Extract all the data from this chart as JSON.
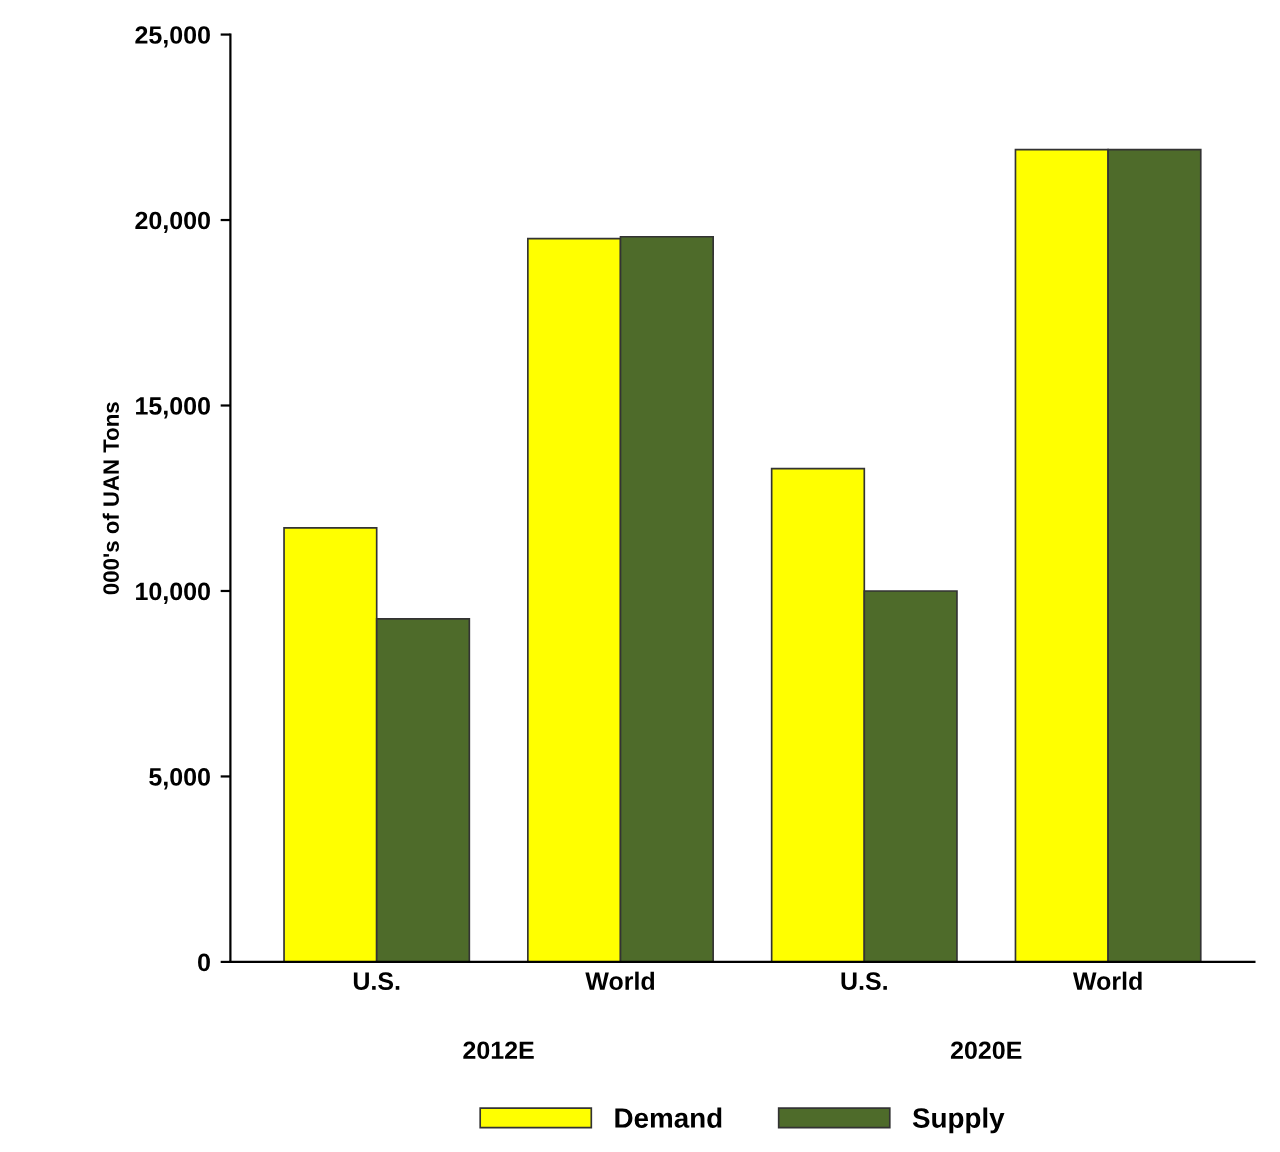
{
  "chart_data": {
    "type": "bar",
    "categories": [
      "U.S.",
      "World",
      "U.S.",
      "World"
    ],
    "series": [
      {
        "name": "Demand",
        "color": "#ffff00",
        "values": [
          11700,
          19500,
          13300,
          21900
        ]
      },
      {
        "name": "Supply",
        "color": "#4e6b2a",
        "values": [
          9250,
          19550,
          10000,
          21900
        ]
      }
    ],
    "ylabel": "000's of UAN Tons",
    "ylim": [
      0,
      25000
    ],
    "yticks": [
      {
        "value": 0,
        "label": "0"
      },
      {
        "value": 5000,
        "label": "5,000"
      },
      {
        "value": 10000,
        "label": "10,000"
      },
      {
        "value": 15000,
        "label": "15,000"
      },
      {
        "value": 20000,
        "label": "20,000"
      },
      {
        "value": 25000,
        "label": "25,000"
      }
    ],
    "annotations": [
      "2012E",
      "2020E"
    ],
    "legend": "bottom",
    "grid": false
  }
}
